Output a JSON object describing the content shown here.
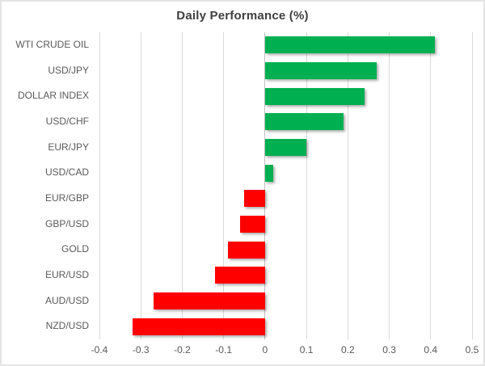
{
  "chart_data": {
    "type": "bar",
    "orientation": "horizontal",
    "title": "Daily Performance (%)",
    "categories": [
      "WTI CRUDE OIL",
      "USD/JPY",
      "DOLLAR INDEX",
      "USD/CHF",
      "EUR/JPY",
      "USD/CAD",
      "EUR/GBP",
      "GBP/USD",
      "GOLD",
      "EUR/USD",
      "AUD/USD",
      "NZD/USD"
    ],
    "values": [
      0.41,
      0.27,
      0.24,
      0.19,
      0.1,
      0.02,
      -0.05,
      -0.06,
      -0.09,
      -0.12,
      -0.27,
      -0.32
    ],
    "xlabel": "",
    "ylabel": "",
    "xlim": [
      -0.4,
      0.5
    ],
    "xticks": [
      -0.4,
      -0.3,
      -0.2,
      -0.1,
      0,
      0.1,
      0.2,
      0.3,
      0.4,
      0.5
    ],
    "xtick_labels": [
      "-0.4",
      "-0.3",
      "-0.2",
      "-0.1",
      "0",
      "0.1",
      "0.2",
      "0.3",
      "0.4",
      "0.5"
    ],
    "grid": true,
    "legend": "none",
    "colors": {
      "positive": "#00B050",
      "negative": "#FF0000",
      "gridline": "#d9d9d9",
      "zero_axis": "#bfbfbf",
      "title_text": "#3f3f3f",
      "label_text": "#595959"
    }
  }
}
